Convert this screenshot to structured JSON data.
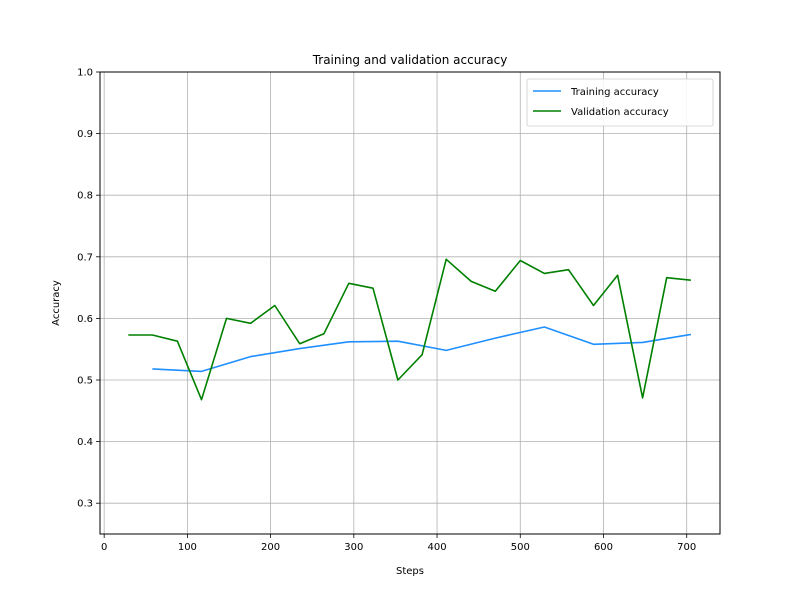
{
  "chart_data": {
    "type": "line",
    "title": "Training and validation accuracy",
    "xlabel": "Steps",
    "ylabel": "Accuracy",
    "xlim": [
      -5,
      740
    ],
    "ylim": [
      0.25,
      1.0
    ],
    "xticks": [
      0,
      100,
      200,
      300,
      400,
      500,
      600,
      700
    ],
    "yticks": [
      0.3,
      0.4,
      0.5,
      0.6,
      0.7,
      0.8,
      0.9,
      1.0
    ],
    "grid": true,
    "legend_position": "top-right",
    "series": [
      {
        "name": "Training accuracy",
        "color": "#1f8fff",
        "x": [
          58,
          117,
          176,
          235,
          294,
          353,
          411,
          470,
          529,
          588,
          647,
          705
        ],
        "y": [
          0.518,
          0.514,
          0.538,
          0.551,
          0.562,
          0.563,
          0.548,
          0.568,
          0.586,
          0.558,
          0.561,
          0.574
        ]
      },
      {
        "name": "Validation accuracy",
        "color": "#008000",
        "x": [
          29,
          58,
          88,
          117,
          147,
          176,
          205,
          235,
          264,
          294,
          323,
          353,
          382,
          411,
          441,
          470,
          500,
          529,
          558,
          588,
          617,
          647,
          676,
          705
        ],
        "y": [
          0.573,
          0.573,
          0.563,
          0.468,
          0.6,
          0.592,
          0.621,
          0.559,
          0.575,
          0.657,
          0.649,
          0.5,
          0.541,
          0.696,
          0.66,
          0.644,
          0.694,
          0.673,
          0.679,
          0.621,
          0.67,
          0.471,
          0.666,
          0.662
        ]
      }
    ]
  }
}
